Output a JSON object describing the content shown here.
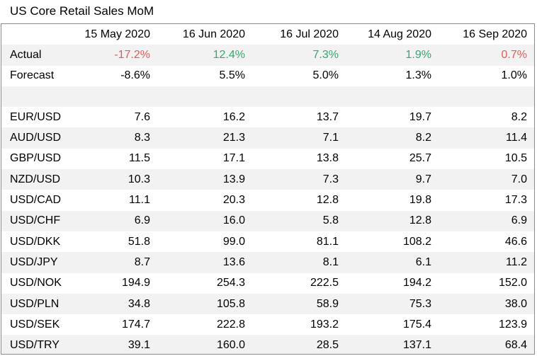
{
  "title": "US Core Retail Sales MoM",
  "colors": {
    "negative": "#e05c5c",
    "positive": "#2faa70",
    "stripe": "#f2f2f2"
  },
  "dates": [
    "15 May 2020",
    "16 Jun 2020",
    "16 Jul 2020",
    "14 Aug 2020",
    "16 Sep 2020"
  ],
  "actual": {
    "label": "Actual",
    "values": [
      "-17.2%",
      "12.4%",
      "7.3%",
      "1.9%",
      "0.7%"
    ],
    "tone": [
      "neg",
      "pos",
      "pos",
      "pos",
      "neg"
    ]
  },
  "forecast": {
    "label": "Forecast",
    "values": [
      "-8.6%",
      "5.5%",
      "5.0%",
      "1.3%",
      "1.0%"
    ]
  },
  "pairs": [
    {
      "name": "EUR/USD",
      "values": [
        "7.6",
        "16.2",
        "13.7",
        "19.7",
        "8.2"
      ]
    },
    {
      "name": "AUD/USD",
      "values": [
        "8.3",
        "21.3",
        "7.1",
        "8.2",
        "11.4"
      ]
    },
    {
      "name": "GBP/USD",
      "values": [
        "11.5",
        "17.1",
        "13.8",
        "25.7",
        "10.5"
      ]
    },
    {
      "name": "NZD/USD",
      "values": [
        "10.3",
        "13.9",
        "7.3",
        "9.7",
        "7.0"
      ]
    },
    {
      "name": "USD/CAD",
      "values": [
        "11.1",
        "20.3",
        "12.8",
        "19.8",
        "17.3"
      ]
    },
    {
      "name": "USD/CHF",
      "values": [
        "6.9",
        "16.0",
        "5.8",
        "12.8",
        "6.9"
      ]
    },
    {
      "name": "USD/DKK",
      "values": [
        "51.8",
        "99.0",
        "81.1",
        "108.2",
        "46.6"
      ]
    },
    {
      "name": "USD/JPY",
      "values": [
        "8.7",
        "13.6",
        "8.1",
        "6.1",
        "11.2"
      ]
    },
    {
      "name": "USD/NOK",
      "values": [
        "194.9",
        "254.3",
        "222.5",
        "194.2",
        "152.0"
      ]
    },
    {
      "name": "USD/PLN",
      "values": [
        "34.8",
        "105.8",
        "58.9",
        "75.3",
        "38.0"
      ]
    },
    {
      "name": "USD/SEK",
      "values": [
        "174.7",
        "222.8",
        "193.2",
        "175.4",
        "123.9"
      ]
    },
    {
      "name": "USD/TRY",
      "values": [
        "39.1",
        "160.0",
        "28.5",
        "137.1",
        "68.4"
      ]
    }
  ]
}
